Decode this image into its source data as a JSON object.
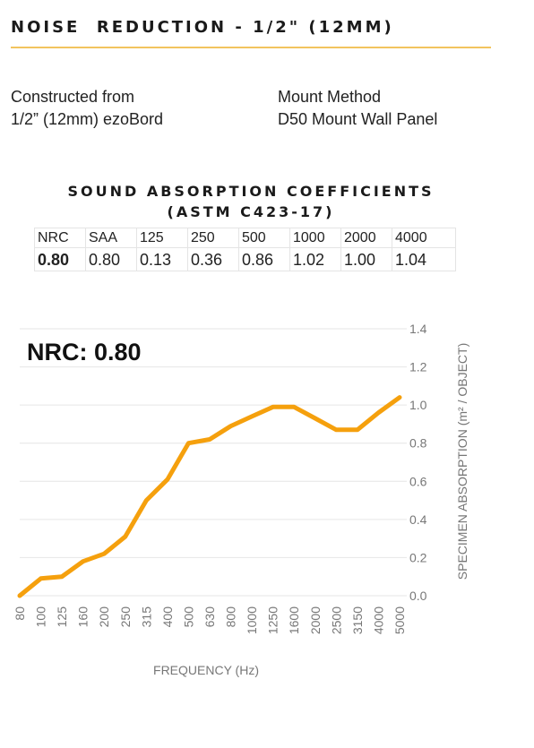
{
  "header": {
    "title": "NOISE  REDUCTION - 1/2\" (12MM)"
  },
  "info": {
    "construction_line1": "Constructed from",
    "construction_line2": "1/2” (12mm) ezoBord",
    "mount_line1": "Mount Method",
    "mount_line2": "D50 Mount Wall Panel"
  },
  "coefficients": {
    "title_line1": "SOUND ABSORPTION COEFFICIENTS",
    "title_line2": "(ASTM C423-17)",
    "headers": [
      "NRC",
      "SAA",
      "125",
      "250",
      "500",
      "1000",
      "2000",
      "4000"
    ],
    "values": [
      "0.80",
      "0.80",
      "0.13",
      "0.36",
      "0.86",
      "1.02",
      "1.00",
      "1.04"
    ]
  },
  "nrc_label": "NRC: 0.80",
  "colors": {
    "line": "#f5a00d",
    "accent_rule": "#f2c45e",
    "grid": "#e6e6e6",
    "axis_text": "#777777"
  },
  "chart_data": {
    "type": "line",
    "xlabel": "FREQUENCY (Hz)",
    "ylabel": "SPECIMEN ABSORPTION (m² / OBJECT)",
    "ylim": [
      0,
      1.4
    ],
    "yticks": [
      "0.0",
      "0.2",
      "0.4",
      "0.6",
      "0.8",
      "1.0",
      "1.2",
      "1.4"
    ],
    "grid": true,
    "y_axis_position": "right",
    "categories": [
      "80",
      "100",
      "125",
      "160",
      "200",
      "250",
      "315",
      "400",
      "500",
      "630",
      "800",
      "1000",
      "1250",
      "1600",
      "2000",
      "2500",
      "3150",
      "4000",
      "5000"
    ],
    "series": [
      {
        "values": [
          0.0,
          0.09,
          0.1,
          0.18,
          0.22,
          0.31,
          0.5,
          0.61,
          0.8,
          0.82,
          0.89,
          0.94,
          0.99,
          0.99,
          0.93,
          0.87,
          0.87,
          0.96,
          1.04
        ]
      }
    ]
  }
}
